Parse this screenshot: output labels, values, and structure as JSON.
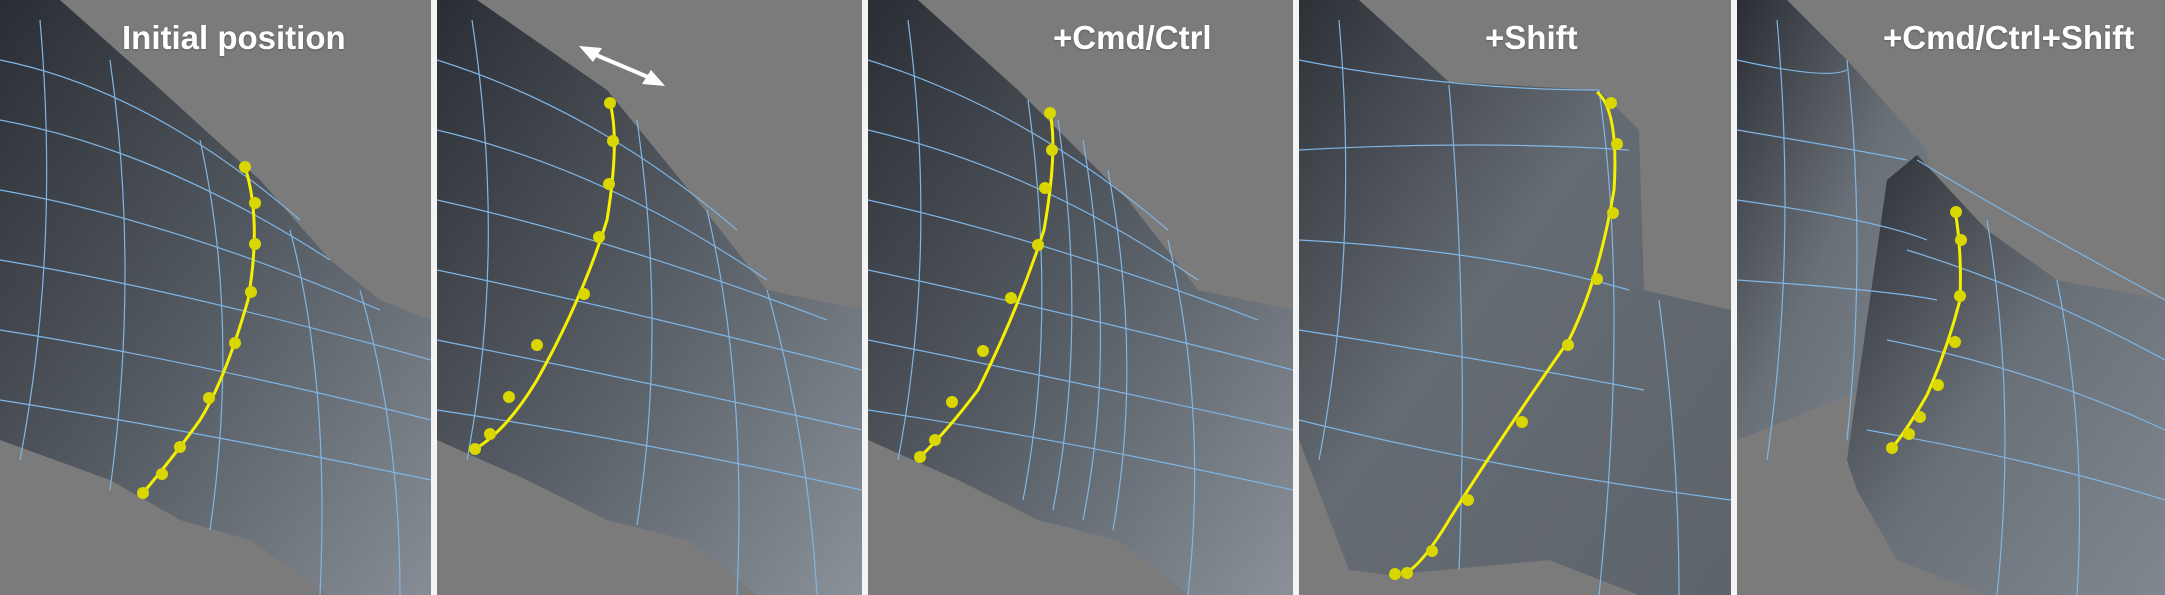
{
  "viewport": {
    "panels": [
      {
        "id": "initial",
        "caption": "Initial position"
      },
      {
        "id": "drag",
        "caption": ""
      },
      {
        "id": "cmd",
        "caption": "+Cmd/Ctrl"
      },
      {
        "id": "shift",
        "caption": "+Shift"
      },
      {
        "id": "cmdshift",
        "caption": "+Cmd/Ctrl+Shift"
      }
    ]
  },
  "colors": {
    "background": "#7b7b7b",
    "mesh_dark": "#22262c",
    "mesh_mid": "#4b5057",
    "mesh_light": "#8d949c",
    "wireframe": "#7fb6e6",
    "selection": "#f5f000",
    "selection_point": "#d9d600",
    "divider": "#f4f4f4",
    "caption": "#ffffff"
  },
  "icons": {
    "move_hint": "double-arrow-icon",
    "selected_points": "point-marker-icon"
  }
}
